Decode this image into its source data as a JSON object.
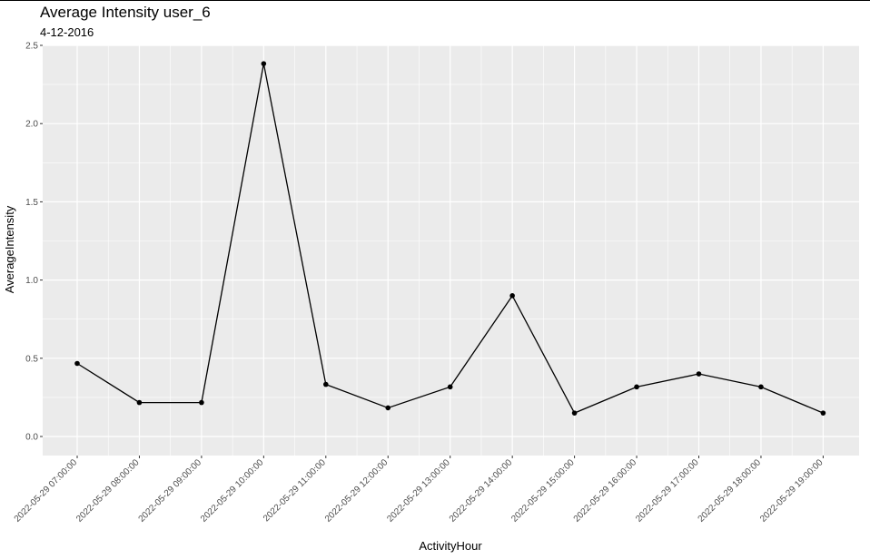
{
  "chart_data": {
    "type": "line",
    "title": "Average Intensity user_6",
    "subtitle": "4-12-2016",
    "xlabel": "ActivityHour",
    "ylabel": "AverageIntensity",
    "categories": [
      "2022-05-29 07:00:00",
      "2022-05-29 08:00:00",
      "2022-05-29 09:00:00",
      "2022-05-29 10:00:00",
      "2022-05-29 11:00:00",
      "2022-05-29 12:00:00",
      "2022-05-29 13:00:00",
      "2022-05-29 14:00:00",
      "2022-05-29 15:00:00",
      "2022-05-29 16:00:00",
      "2022-05-29 17:00:00",
      "2022-05-29 18:00:00",
      "2022-05-29 19:00:00"
    ],
    "values": [
      0.467,
      0.217,
      0.217,
      2.383,
      0.333,
      0.183,
      0.317,
      0.9,
      0.15,
      0.317,
      0.4,
      0.317,
      0.15
    ],
    "y_ticks": [
      "0.0",
      "0.5",
      "1.0",
      "1.5",
      "2.0",
      "2.5"
    ],
    "ylim": [
      -0.12,
      2.5
    ],
    "grid": true,
    "legend": "none",
    "colors": {
      "panel": "#ebebeb",
      "grid": "#ffffff",
      "line": "#000000",
      "tick_text": "#4d4d4d"
    }
  }
}
